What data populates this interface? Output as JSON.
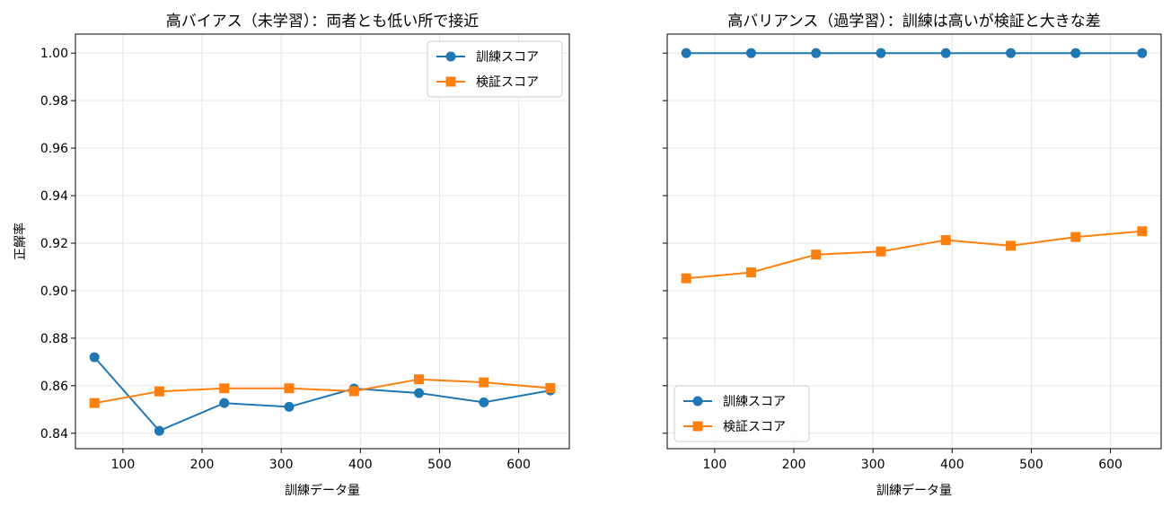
{
  "chart_data": [
    {
      "type": "line",
      "title": "高バイアス（未学習）：両者とも低い所で接近",
      "xlabel": "訓練データ量",
      "ylabel": "正解率",
      "x": [
        64,
        146,
        228,
        310,
        392,
        474,
        556,
        640
      ],
      "xticks": [
        100,
        200,
        300,
        400,
        500,
        600
      ],
      "xlim": [
        40,
        664
      ],
      "yticks": [
        0.84,
        0.86,
        0.88,
        0.9,
        0.92,
        0.94,
        0.96,
        0.98,
        1.0
      ],
      "ytick_labels": [
        "0.84",
        "0.86",
        "0.88",
        "0.90",
        "0.92",
        "0.94",
        "0.96",
        "0.98",
        "1.00"
      ],
      "ylim": [
        0.8335,
        1.008
      ],
      "grid": true,
      "legend": "top-right",
      "series": [
        {
          "name": "訓練スコア",
          "color": "#1f77b4",
          "marker": "circle",
          "values": [
            0.872,
            0.841,
            0.8527,
            0.8511,
            0.8588,
            0.8569,
            0.853,
            0.858
          ]
        },
        {
          "name": "検証スコア",
          "color": "#ff7f0e",
          "marker": "square",
          "values": [
            0.8527,
            0.8576,
            0.8589,
            0.8589,
            0.8577,
            0.8627,
            0.8614,
            0.859
          ]
        }
      ]
    },
    {
      "type": "line",
      "title": "高バリアンス（過学習）：訓練は高いが検証と大きな差",
      "xlabel": "訓練データ量",
      "ylabel": "",
      "x": [
        64,
        146,
        228,
        310,
        392,
        474,
        556,
        640
      ],
      "xticks": [
        100,
        200,
        300,
        400,
        500,
        600
      ],
      "xlim": [
        40,
        664
      ],
      "yticks": [
        0.84,
        0.86,
        0.88,
        0.9,
        0.92,
        0.94,
        0.96,
        0.98,
        1.0
      ],
      "ytick_labels": [],
      "ylim": [
        0.8335,
        1.008
      ],
      "grid": true,
      "legend": "bottom-left",
      "series": [
        {
          "name": "訓練スコア",
          "color": "#1f77b4",
          "marker": "circle",
          "values": [
            1.0,
            1.0,
            1.0,
            1.0,
            1.0,
            1.0,
            1.0,
            1.0
          ]
        },
        {
          "name": "検証スコア",
          "color": "#ff7f0e",
          "marker": "square",
          "values": [
            0.9052,
            0.9077,
            0.9152,
            0.9165,
            0.9213,
            0.9189,
            0.9226,
            0.925
          ]
        }
      ]
    }
  ]
}
